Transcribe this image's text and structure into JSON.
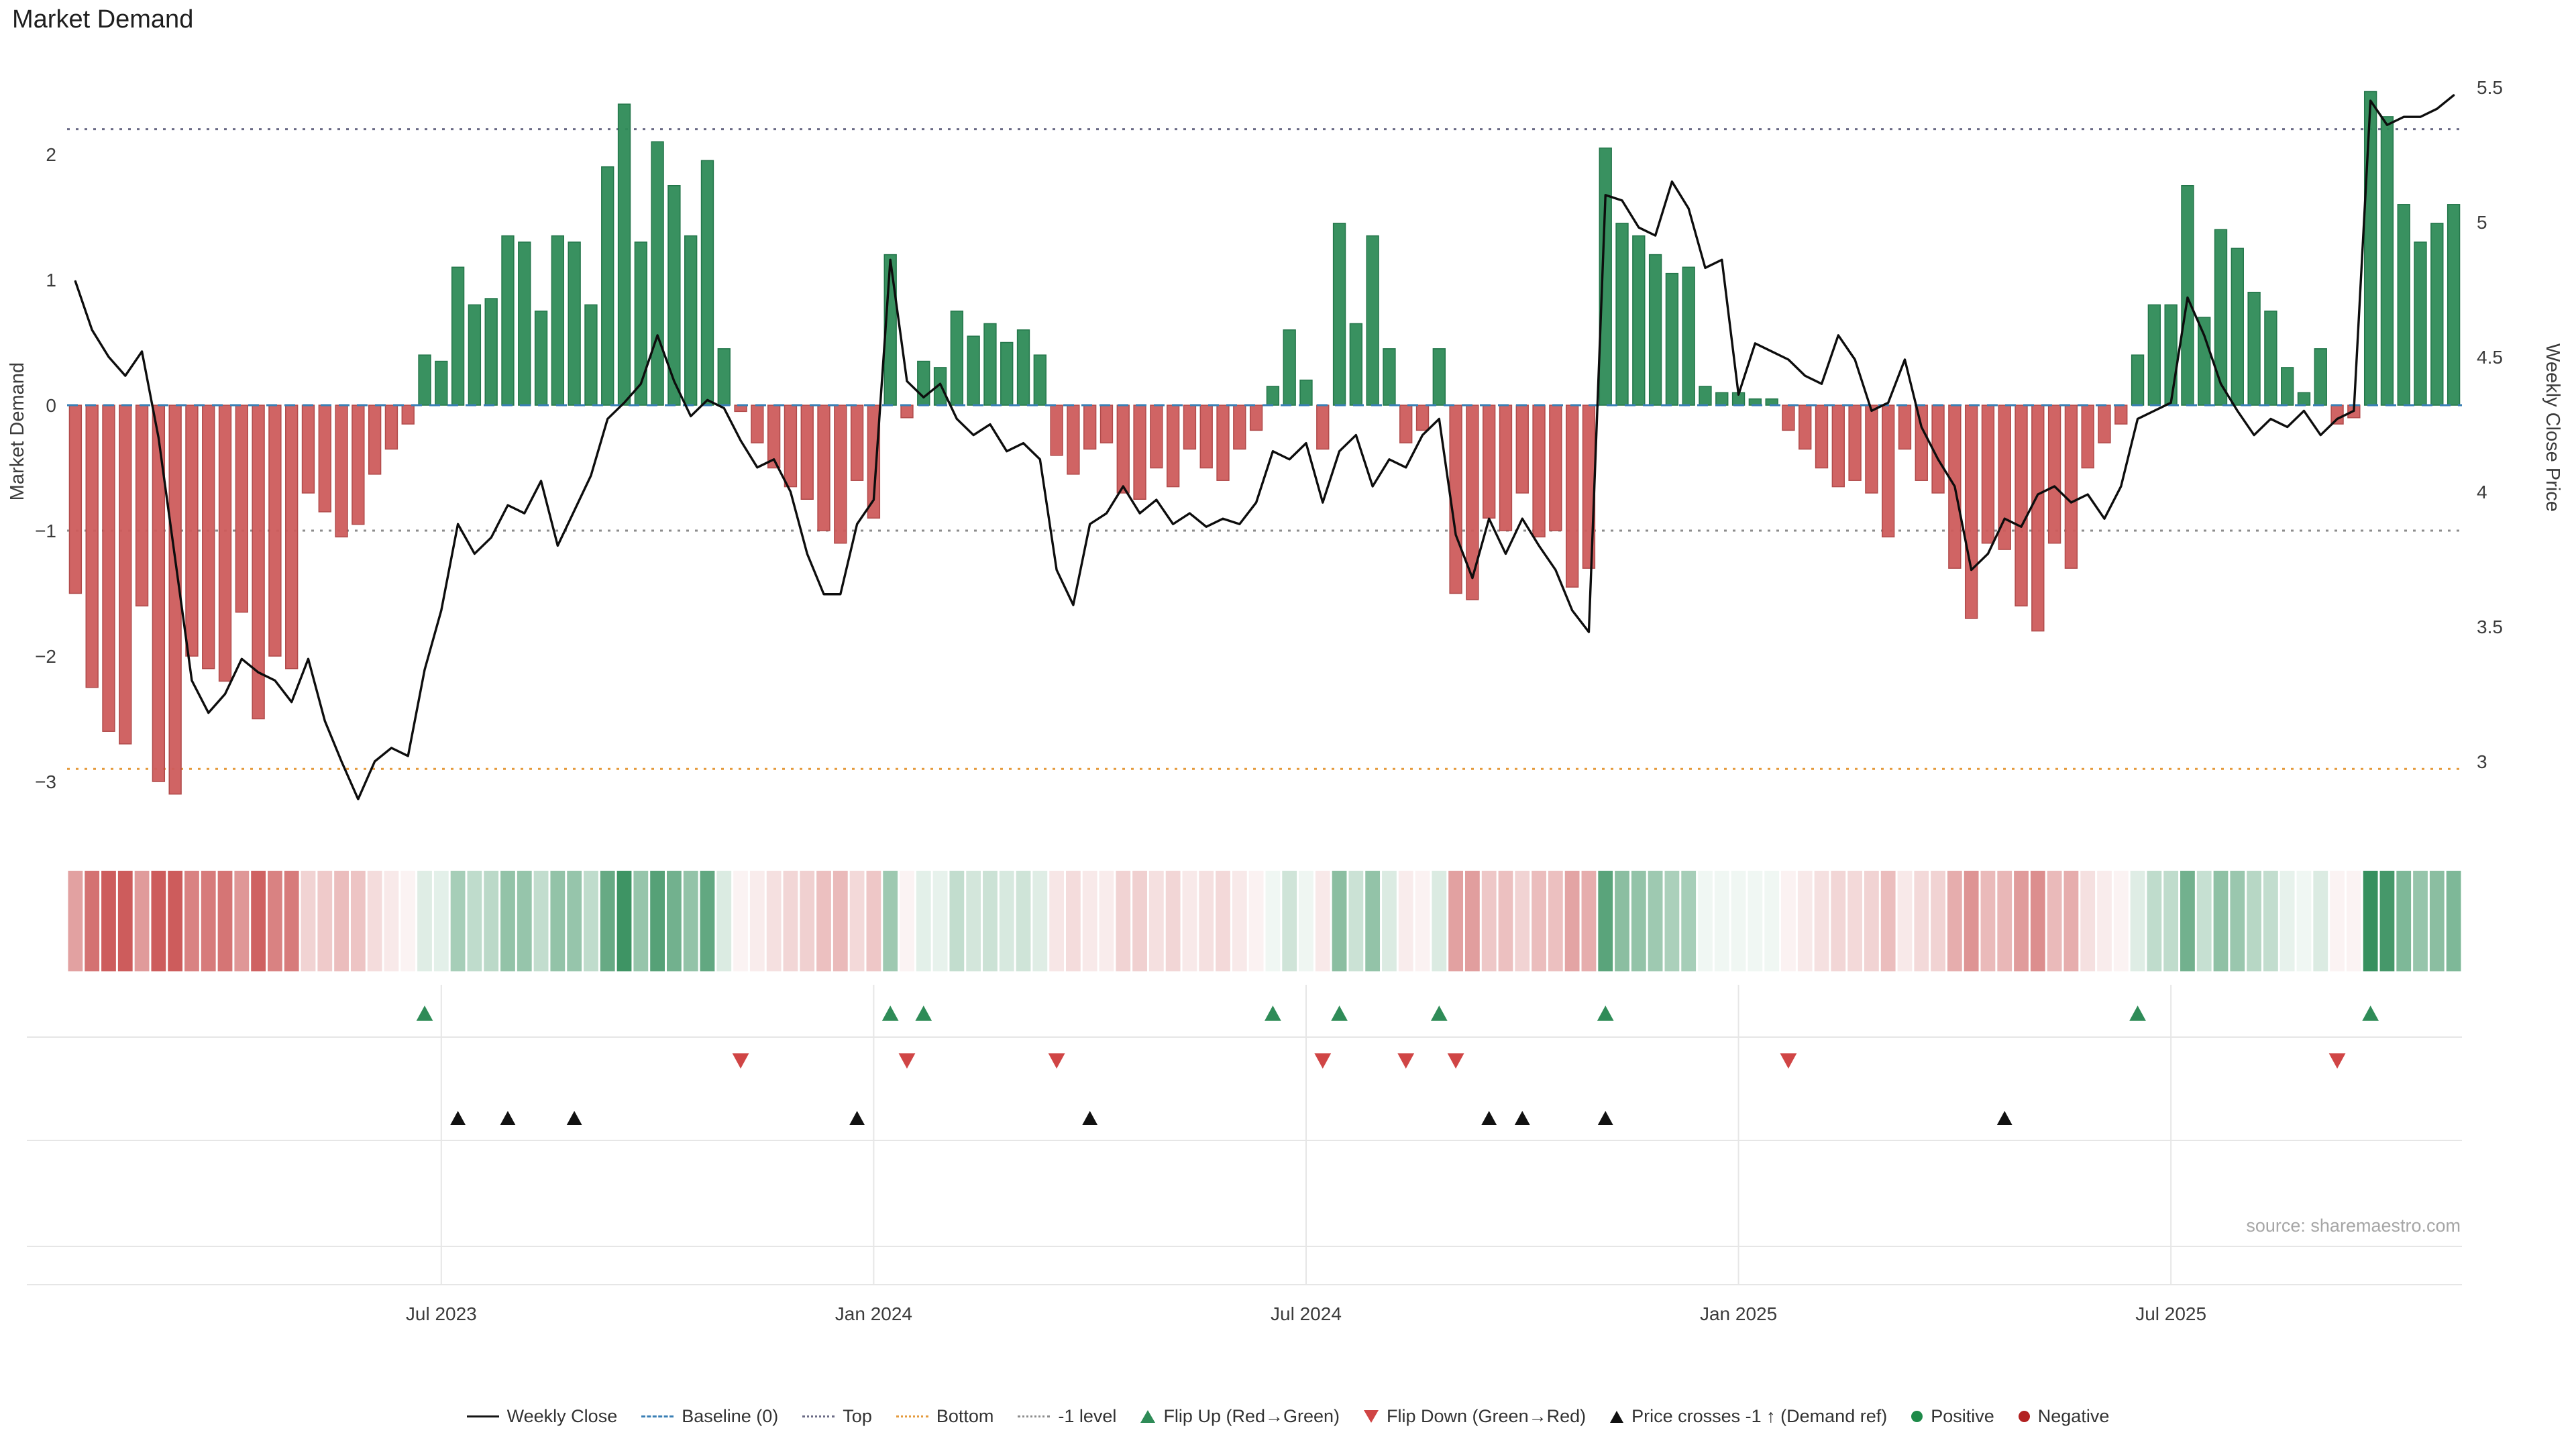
{
  "title": "Market Demand",
  "source_note": "source: sharemaestro.com",
  "axes": {
    "left_title": "Market Demand",
    "right_title": "Weekly Close Price",
    "left_tick_values": [
      2,
      1,
      0,
      -1,
      -2,
      -3
    ],
    "left_tick_labels": [
      "2",
      "1",
      "0",
      "−1",
      "−2",
      "−3"
    ],
    "right_tick_values": [
      5.5,
      5,
      4.5,
      4,
      3.5,
      3
    ],
    "right_tick_labels": [
      "5.5",
      "5",
      "4.5",
      "4",
      "3.5",
      "3"
    ]
  },
  "colors": {
    "positive": "#2e8b57",
    "positive_edge": "#23764a",
    "negative": "#cd5c5c",
    "negative_edge": "#b04a4a",
    "weekly_close_line": "#0d0d0d",
    "baseline": "#3a7fb5",
    "top_line": "#6a6a85",
    "bottom_line": "#e59a3c",
    "minus_one_line": "#8c8c8c",
    "flip_up": "#2e8b57",
    "flip_down": "#d04545",
    "price_cross": "#111111",
    "grid": "#e6e6e6",
    "tick_text": "#3c3c3c"
  },
  "legend": {
    "items": [
      {
        "label": "Weekly Close",
        "swatch": "solid-black-line"
      },
      {
        "label": "Baseline (0)",
        "swatch": "blue-dashed-line"
      },
      {
        "label": "Top",
        "swatch": "gray-dotted-line"
      },
      {
        "label": "Bottom",
        "swatch": "orange-dotted-line"
      },
      {
        "label": "-1 level",
        "swatch": "gray-dotted-line"
      },
      {
        "label": "Flip Up (Red→Green)",
        "swatch": "green-up-triangle"
      },
      {
        "label": "Flip Down (Green→Red)",
        "swatch": "red-down-triangle"
      },
      {
        "label": "Price crosses -1 ↑ (Demand ref)",
        "swatch": "black-up-triangle"
      },
      {
        "label": "Positive",
        "swatch": "green-dot"
      },
      {
        "label": "Negative",
        "swatch": "red-dot"
      }
    ]
  },
  "chart_data": {
    "type": "bar",
    "title": "Market Demand",
    "frequency": "weekly",
    "x_start_date": "2023-01-30",
    "n_weeks": 144,
    "ylabel_left": "Market Demand",
    "ylabel_right": "Weekly Close Price",
    "ylim_left": [
      -3.35,
      2.78
    ],
    "ylim_right": [
      2.76,
      5.61
    ],
    "grid": "off",
    "legend_position": "bottom-center",
    "reference_lines": {
      "baseline": 0,
      "top": 2.2,
      "bottom": -2.9,
      "minus_one_level": -1
    },
    "x_tick_weeks": [
      22,
      48,
      74,
      100,
      126
    ],
    "x_tick_labels": [
      "Jul 2023",
      "Jan 2024",
      "Jul 2024",
      "Jan 2025",
      "Jul 2025"
    ],
    "series": [
      {
        "name": "Market Demand",
        "type": "bar",
        "axis": "left",
        "values": [
          -1.5,
          -2.25,
          -2.6,
          -2.7,
          -1.6,
          -3.0,
          -3.1,
          -2.0,
          -2.1,
          -2.2,
          -1.65,
          -2.5,
          -2.0,
          -2.1,
          -0.7,
          -0.85,
          -1.05,
          -0.95,
          -0.55,
          -0.35,
          -0.15,
          0.4,
          0.35,
          1.1,
          0.8,
          0.85,
          1.35,
          1.3,
          0.75,
          1.35,
          1.3,
          0.8,
          1.9,
          2.4,
          1.3,
          2.1,
          1.75,
          1.35,
          1.95,
          0.45,
          -0.05,
          -0.3,
          -0.5,
          -0.65,
          -0.75,
          -1.0,
          -1.1,
          -0.6,
          -0.9,
          1.2,
          -0.1,
          0.35,
          0.3,
          0.75,
          0.55,
          0.65,
          0.5,
          0.6,
          0.4,
          -0.4,
          -0.55,
          -0.35,
          -0.3,
          -0.7,
          -0.75,
          -0.5,
          -0.65,
          -0.35,
          -0.5,
          -0.6,
          -0.35,
          -0.2,
          0.15,
          0.6,
          0.2,
          -0.35,
          1.45,
          0.65,
          1.35,
          0.45,
          -0.3,
          -0.2,
          0.45,
          -1.5,
          -1.55,
          -0.9,
          -1.0,
          -0.7,
          -1.05,
          -1.0,
          -1.45,
          -1.3,
          2.05,
          1.45,
          1.35,
          1.2,
          1.05,
          1.1,
          0.15,
          0.1,
          0.1,
          0.05,
          0.05,
          -0.2,
          -0.35,
          -0.5,
          -0.65,
          -0.6,
          -0.7,
          -1.05,
          -0.35,
          -0.6,
          -0.7,
          -1.3,
          -1.7,
          -1.1,
          -1.15,
          -1.6,
          -1.8,
          -1.1,
          -1.3,
          -0.5,
          -0.3,
          -0.15,
          0.4,
          0.8,
          0.8,
          1.75,
          0.7,
          1.4,
          1.25,
          0.9,
          0.75,
          0.3,
          0.1,
          0.45,
          -0.15,
          -0.1,
          2.5,
          2.3,
          1.6,
          1.3,
          1.45,
          1.6
        ]
      },
      {
        "name": "Weekly Close",
        "type": "line",
        "axis": "right",
        "values": [
          4.78,
          4.6,
          4.5,
          4.43,
          4.52,
          4.2,
          3.75,
          3.3,
          3.18,
          3.25,
          3.38,
          3.33,
          3.3,
          3.22,
          3.38,
          3.15,
          3.0,
          2.86,
          3.0,
          3.05,
          3.02,
          3.34,
          3.56,
          3.88,
          3.77,
          3.83,
          3.95,
          3.92,
          4.04,
          3.8,
          3.93,
          4.06,
          4.27,
          4.33,
          4.4,
          4.58,
          4.41,
          4.28,
          4.34,
          4.31,
          4.19,
          4.09,
          4.12,
          4.0,
          3.77,
          3.62,
          3.62,
          3.88,
          3.97,
          4.86,
          4.41,
          4.35,
          4.4,
          4.27,
          4.21,
          4.25,
          4.15,
          4.18,
          4.12,
          3.71,
          3.58,
          3.88,
          3.92,
          4.02,
          3.92,
          3.97,
          3.88,
          3.92,
          3.87,
          3.9,
          3.88,
          3.96,
          4.15,
          4.12,
          4.18,
          3.96,
          4.15,
          4.21,
          4.02,
          4.12,
          4.09,
          4.21,
          4.27,
          3.84,
          3.68,
          3.9,
          3.77,
          3.9,
          3.8,
          3.71,
          3.56,
          3.48,
          5.1,
          5.08,
          4.98,
          4.95,
          5.15,
          5.05,
          4.83,
          4.86,
          4.36,
          4.55,
          4.52,
          4.49,
          4.43,
          4.4,
          4.58,
          4.49,
          4.3,
          4.33,
          4.49,
          4.24,
          4.12,
          4.02,
          3.71,
          3.77,
          3.9,
          3.87,
          3.99,
          4.02,
          3.96,
          3.99,
          3.9,
          4.02,
          4.27,
          4.3,
          4.33,
          4.72,
          4.58,
          4.4,
          4.3,
          4.21,
          4.27,
          4.24,
          4.3,
          4.21,
          4.27,
          4.3,
          5.45,
          5.36,
          5.39,
          5.39,
          5.42,
          5.47
        ]
      }
    ],
    "markers": {
      "flip_up_weeks": [
        21,
        49,
        51,
        72,
        76,
        82,
        92,
        124,
        138
      ],
      "flip_down_weeks": [
        40,
        50,
        59,
        75,
        80,
        83,
        103,
        136
      ],
      "price_cross_minus1_up_weeks": [
        23,
        26,
        30,
        47,
        61,
        85,
        87,
        92,
        116
      ]
    },
    "heatmap_strip": {
      "description": "weekly cells colored green (positive) / red (negative), intensity proportional to |Market Demand|",
      "intensity_norm": 2.6
    }
  }
}
